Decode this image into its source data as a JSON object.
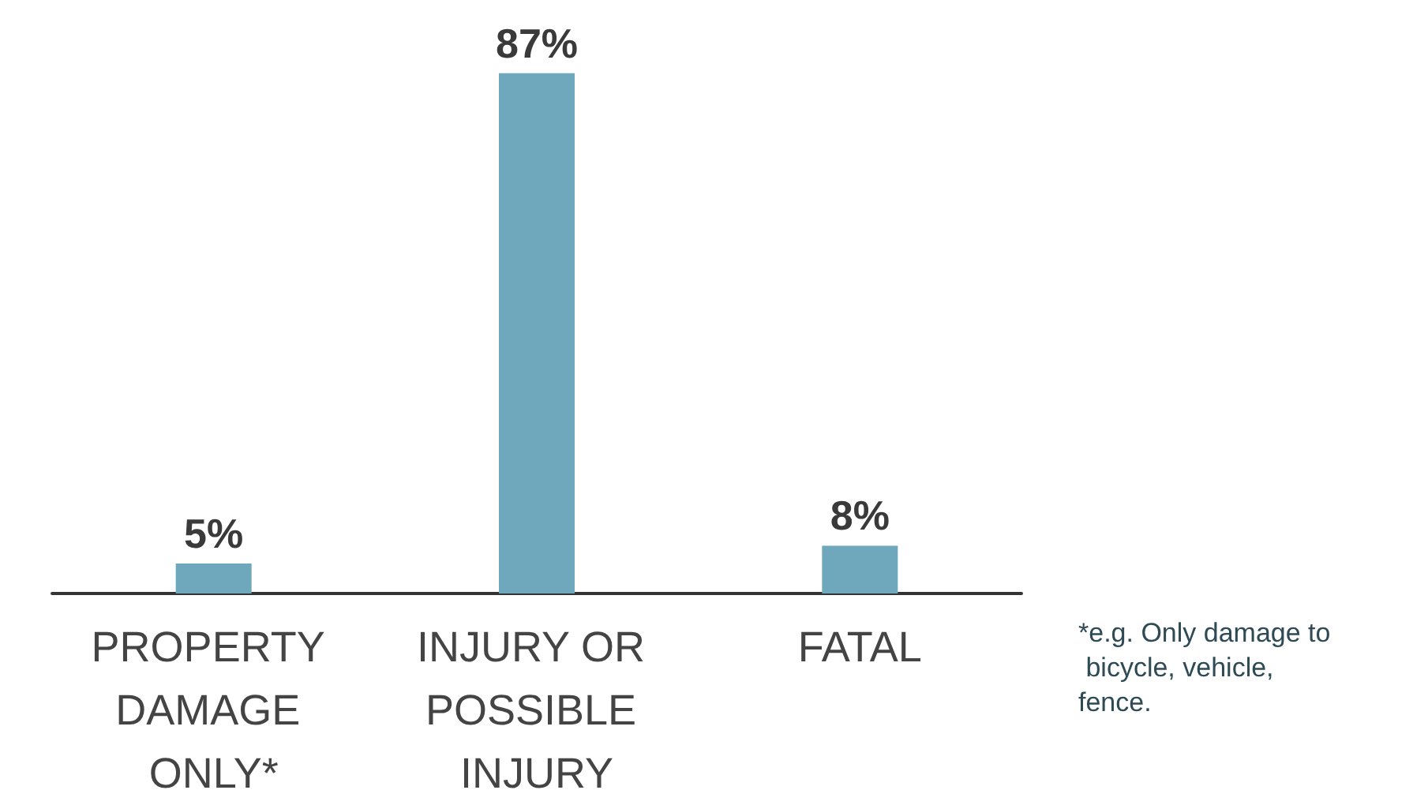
{
  "chart_data": {
    "type": "bar",
    "categories": [
      "PROPERTY DAMAGE ONLY*",
      "INJURY OR POSSIBLE INJURY",
      "FATAL"
    ],
    "values": [
      5,
      87,
      8
    ],
    "color": "#6fa8bc",
    "value_labels": [
      "5%",
      "87%",
      "8%"
    ],
    "annotations": [
      "*e.g. Only damage to bicycle, vehicle, fence."
    ]
  }
}
